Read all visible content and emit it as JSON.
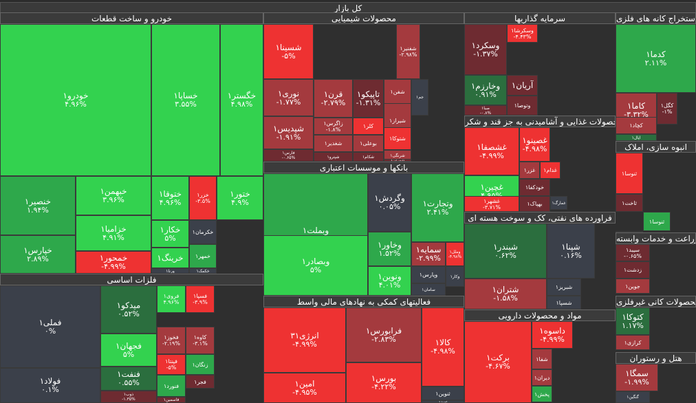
{
  "header": {
    "title": "کل بازار"
  },
  "colors": {
    "dark_red": "#6e2b31",
    "mid_red": "#a43a3e",
    "bright_red": "#ee3232",
    "neutral": "#3b404a",
    "dark_green": "#2b6e3e",
    "mid_green": "#2ea84b",
    "bright_green": "#33d24f"
  },
  "chart_data": {
    "type": "treemap",
    "title": "کل بازار",
    "sectors": [
      {
        "name": "خودرو و ساخت قطعات",
        "tiles": [
          {
            "symbol": "خودرو۱",
            "change": "۴.۹۶%",
            "value": 4.96
          },
          {
            "symbol": "خساپا۱",
            "change": "۳.۵۵%",
            "value": 3.55
          },
          {
            "symbol": "خگستر۱",
            "change": "۴.۹۸%",
            "value": 4.98
          },
          {
            "symbol": "خنصیر۱",
            "change": "۱.۹۴%",
            "value": 1.94
          },
          {
            "symbol": "خبهمن۱",
            "change": "۳.۹۶%",
            "value": 3.96
          },
          {
            "symbol": "ختوقا۱",
            "change": "۴.۹۶%",
            "value": 4.96
          },
          {
            "symbol": "خزر۱",
            "change": "-۳.۵%",
            "value": -3.5
          },
          {
            "symbol": "ختور۱",
            "change": "۴.۹%",
            "value": 4.9
          },
          {
            "symbol": "خزامیا۱",
            "change": "۴.۹۱%",
            "value": 4.91
          },
          {
            "symbol": "خکار۱",
            "change": "۵%",
            "value": 5
          },
          {
            "symbol": "خکرمان۱",
            "change": "",
            "value": 0
          },
          {
            "symbol": "خپارس۱",
            "change": "۲.۸۹%",
            "value": 2.89
          },
          {
            "symbol": "خمحور۱",
            "change": "-۴.۹۹%",
            "value": -4.99
          },
          {
            "symbol": "خرینگ۱",
            "change": "",
            "value": 4
          },
          {
            "symbol": "خمهر۱",
            "change": "",
            "value": 3
          },
          {
            "symbol": "ورنا۱",
            "change": "",
            "value": 0
          },
          {
            "symbol": "خکمک۱",
            "change": "",
            "value": 0
          }
        ]
      },
      {
        "name": "محصولات شیمیایی",
        "tiles": [
          {
            "symbol": "شسینا۱",
            "change": "-۵%",
            "value": -5
          },
          {
            "symbol": "نوری۱",
            "change": "-۱.۷۷%",
            "value": -1.77
          },
          {
            "symbol": "شپدیس۱",
            "change": "-۱.۹۱%",
            "value": -1.91
          },
          {
            "symbol": "فارس۱",
            "change": "-۰.۶۵%",
            "value": -0.65
          },
          {
            "symbol": "قرن۱",
            "change": "-۲.۷۹%",
            "value": -2.79
          },
          {
            "symbol": "تاپیکو۱",
            "change": "-۱.۳۱%",
            "value": -1.31
          },
          {
            "symbol": "زاگرس۱",
            "change": "-۱.۸%",
            "value": -1.8
          },
          {
            "symbol": "کلر۱",
            "change": "",
            "value": -5
          },
          {
            "symbol": "شغدیر۱",
            "change": "",
            "value": -2
          },
          {
            "symbol": "بوعلی۱",
            "change": "",
            "value": -2
          },
          {
            "symbol": "آریا۱",
            "change": "",
            "value": 0
          },
          {
            "symbol": "کرماشا۱",
            "change": "",
            "value": -1
          },
          {
            "symbol": "شیراز۱",
            "change": "",
            "value": -3
          },
          {
            "symbol": "شکام۱",
            "change": "",
            "value": -1
          },
          {
            "symbol": "شتوکا۱",
            "change": "",
            "value": -5
          },
          {
            "symbol": "شرنگی۱",
            "change": "",
            "value": -2
          },
          {
            "symbol": "شپترو۱",
            "change": "",
            "value": -1
          },
          {
            "symbol": "شفن۱",
            "change": "",
            "value": -3
          },
          {
            "symbol": "جم۱",
            "change": "",
            "value": 0
          },
          {
            "symbol": "شفنیر۱",
            "change": "-۲.۹۸%",
            "value": -2.98
          },
          {
            "symbol": "شهران۱",
            "change": "",
            "value": -1
          }
        ]
      },
      {
        "name": "سرمایه گذاریها",
        "tiles": [
          {
            "symbol": "وسکرد۱",
            "change": "-۱.۳۷%",
            "value": -1.37
          },
          {
            "symbol": "وسکرشا۱",
            "change": "-۴.۴۳%",
            "value": -4.43
          },
          {
            "symbol": "وخارزم۱",
            "change": "۰.۹۱%",
            "value": 0.91
          },
          {
            "symbol": "آریان۱",
            "change": "",
            "value": -1
          },
          {
            "symbol": "صبا۱",
            "change": "-۰.۸%",
            "value": -0.8
          },
          {
            "symbol": "وتوصا۱",
            "change": "",
            "value": -1
          }
        ]
      },
      {
        "name": "استخراج کانه های فلزی",
        "tiles": [
          {
            "symbol": "کدما۱",
            "change": "۲.۱۱%",
            "value": 2.11
          },
          {
            "symbol": "کاما۱",
            "change": "-۳.۳۲%",
            "value": -3.32
          },
          {
            "symbol": "کگل۱",
            "change": "-۱%",
            "value": -1
          },
          {
            "symbol": "کچاد۱",
            "change": "",
            "value": -3
          },
          {
            "symbol": "اپال۱",
            "change": "",
            "value": 1
          }
        ]
      },
      {
        "name": "محصولات غذایی و آشامیدنی به جز قند و شکر",
        "tiles": [
          {
            "symbol": "غشصفا۱",
            "change": "-۴.۹۹%",
            "value": -4.99
          },
          {
            "symbol": "غصینو۱",
            "change": "-۴.۹۸%",
            "value": -4.98
          },
          {
            "symbol": "غچین۱",
            "change": "۴.۹۵%",
            "value": 4.95
          },
          {
            "symbol": "غزر۱",
            "change": "",
            "value": -3
          },
          {
            "symbol": "غدام۱",
            "change": "",
            "value": -4
          },
          {
            "symbol": "خودکفا۱",
            "change": "",
            "value": -1
          },
          {
            "symbol": "غشهر۱",
            "change": "-۳.۷۱%",
            "value": -3.71
          },
          {
            "symbol": "بهپاک۱",
            "change": "",
            "value": -1
          },
          {
            "symbol": "غاذر۱",
            "change": "",
            "value": -2
          },
          {
            "symbol": "غمارگ۱",
            "change": "",
            "value": 0
          }
        ]
      },
      {
        "name": "انبوه سازی، املاک",
        "tiles": [
          {
            "symbol": "ثنوسا۱",
            "change": "",
            "value": -4
          },
          {
            "symbol": "ثاخت۱",
            "change": "",
            "value": -1
          },
          {
            "symbol": "ثنوسا۱",
            "change": "",
            "value": 3
          },
          {
            "symbol": "ثاباد۱",
            "change": "",
            "value": -1
          }
        ]
      },
      {
        "name": "بانکها و موسسات اعتباری",
        "tiles": [
          {
            "symbol": "وبملت۱",
            "change": "۳.۰۷%",
            "value": 3.07
          },
          {
            "symbol": "وگردش۱",
            "change": "۰.۰۵%",
            "value": 0.05
          },
          {
            "symbol": "وتجارت۱",
            "change": "۲.۴۱%",
            "value": 2.41
          },
          {
            "symbol": "وخاور۱",
            "change": "۱.۵۲%",
            "value": 1.52
          },
          {
            "symbol": "سمایه۱",
            "change": "-۲.۹۹%",
            "value": -2.99
          },
          {
            "symbol": "وملل۱",
            "change": "-۴.۹۸%",
            "value": -4.98
          },
          {
            "symbol": "وبصادر۱",
            "change": "۵%",
            "value": 5
          },
          {
            "symbol": "وپارس۱",
            "change": "",
            "value": 0
          },
          {
            "symbol": "وکار۱",
            "change": "",
            "value": 0
          },
          {
            "symbol": "ونوین۱",
            "change": "۴.۰۱%",
            "value": 4.01
          },
          {
            "symbol": "سامان۱",
            "change": "",
            "value": 0
          }
        ]
      },
      {
        "name": "فراورده های نفتی، کک و سوخت هسته ای",
        "tiles": [
          {
            "symbol": "شبندر۱",
            "change": "۰.۶۲%",
            "value": 0.62
          },
          {
            "symbol": "شپنا۱",
            "change": "۰.۱۶%",
            "value": 0.16
          },
          {
            "symbol": "شبریز۱",
            "change": "",
            "value": 0
          },
          {
            "symbol": "شتران۱",
            "change": "-۱.۵۸%",
            "value": -1.58
          },
          {
            "symbol": "شسپا۱",
            "change": "",
            "value": 0
          }
        ]
      },
      {
        "name": "زراعت و خدمات وابسته",
        "tiles": [
          {
            "symbol": "سیبد۱",
            "change": "-۰.۶۵%",
            "value": -0.65
          },
          {
            "symbol": "زدشت۱",
            "change": "",
            "value": -1
          },
          {
            "symbol": "جوین۱",
            "change": "",
            "value": -3
          }
        ]
      },
      {
        "name": "فلزات اساسی",
        "tiles": [
          {
            "symbol": "فملی۱",
            "change": "۰%",
            "value": 0
          },
          {
            "symbol": "فولاد۱",
            "change": "۰.۱%",
            "value": 0.1
          },
          {
            "symbol": "میدکو۱",
            "change": "۰.۵۲%",
            "value": 0.52
          },
          {
            "symbol": "فروی۱",
            "change": "۴.۹۶%",
            "value": 4.96
          },
          {
            "symbol": "فسپا۱",
            "change": "-۳.۹%",
            "value": -3.9
          },
          {
            "symbol": "فجهان۱",
            "change": "۵%",
            "value": 5
          },
          {
            "symbol": "فخوز۱",
            "change": "-۲.۱۹%",
            "value": -2.19
          },
          {
            "symbol": "کاوه۱",
            "change": "-۳.۱%",
            "value": -3.1
          },
          {
            "symbol": "فنفت۱",
            "change": "۰.۵۵%",
            "value": 0.55
          },
          {
            "symbol": "فپنتا۱",
            "change": "-۵%",
            "value": -5
          },
          {
            "symbol": "زنگان۱",
            "change": "",
            "value": 2
          },
          {
            "symbol": "فجر۱",
            "change": "",
            "value": -1
          },
          {
            "symbol": "ذوب۱",
            "change": "-۱.۳۵%",
            "value": -1.35
          },
          {
            "symbol": "فنورد۱",
            "change": "",
            "value": 3
          },
          {
            "symbol": "فاسمین۱",
            "change": "",
            "value": -1
          }
        ]
      },
      {
        "name": "فعالیتهای کمکی به نهادهای مالی واسط",
        "tiles": [
          {
            "symbol": "انرژی۳۱",
            "change": "-۴.۹۹%",
            "value": -4.99
          },
          {
            "symbol": "فرابورس۱",
            "change": "-۲.۸۳%",
            "value": -2.83
          },
          {
            "symbol": "کالا۱",
            "change": "-۴.۹۸%",
            "value": -4.98
          },
          {
            "symbol": "امین۱",
            "change": "-۴.۹۵%",
            "value": -4.95
          },
          {
            "symbol": "بورس۱",
            "change": "-۴.۲۲%",
            "value": -4.22
          },
          {
            "symbol": "ثنوین۱",
            "change": "",
            "value": 0
          },
          {
            "symbol": "امید۱",
            "change": "",
            "value": 0
          }
        ]
      },
      {
        "name": "مواد و محصولات دارویی",
        "tiles": [
          {
            "symbol": "برکت۱",
            "change": "-۴.۶۷%",
            "value": -4.67
          },
          {
            "symbol": "داسوه۱",
            "change": "-۴.۹۹%",
            "value": -4.99
          },
          {
            "symbol": "شفا۱",
            "change": "",
            "value": -3
          },
          {
            "symbol": "دیران۱",
            "change": "",
            "value": -2
          },
          {
            "symbol": "پخش۱",
            "change": "",
            "value": 3
          }
        ]
      },
      {
        "name": "سایر محصولات کانی غیرفلزی",
        "tiles": [
          {
            "symbol": "کتوکا۱",
            "change": "۱.۱۷%",
            "value": 1.17
          },
          {
            "symbol": "کرازی۱",
            "change": "",
            "value": -3
          }
        ]
      },
      {
        "name": "هتل و رستوران",
        "tiles": [
          {
            "symbol": "سمگا۱",
            "change": "-۱.۹۹%",
            "value": -1.99
          },
          {
            "symbol": "گنگین۱",
            "change": "",
            "value": 0
          }
        ]
      }
    ]
  }
}
